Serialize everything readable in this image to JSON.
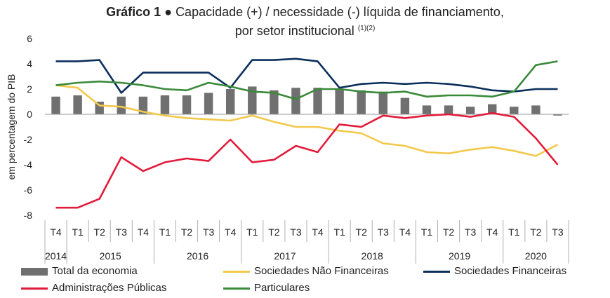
{
  "title": {
    "bold": "Gráfico 1 ●",
    "line1": "Capacidade (+) / necessidade (-) líquida de financiamento,",
    "line2": "por setor institucional",
    "notes": "(1)(2)"
  },
  "chart_data": {
    "type": "bar",
    "ylabel": "em percentagem do PIB",
    "ylim": [
      -8,
      6
    ],
    "yticks": [
      6,
      4,
      2,
      0,
      -2,
      -4,
      -6,
      -8
    ],
    "grid": false,
    "quarters": [
      "T4",
      "T1",
      "T2",
      "T3",
      "T4",
      "T1",
      "T2",
      "T3",
      "T4",
      "T1",
      "T2",
      "T3",
      "T4",
      "T1",
      "T2",
      "T3",
      "T4",
      "T1",
      "T2",
      "T3",
      "T4",
      "T1",
      "T2",
      "T3"
    ],
    "years": [
      {
        "label": "2014",
        "start": 0,
        "end": 0
      },
      {
        "label": "2015",
        "start": 1,
        "end": 4
      },
      {
        "label": "2016",
        "start": 5,
        "end": 8
      },
      {
        "label": "2017",
        "start": 9,
        "end": 12
      },
      {
        "label": "2018",
        "start": 13,
        "end": 16
      },
      {
        "label": "2019",
        "start": 17,
        "end": 20
      },
      {
        "label": "2020",
        "start": 21,
        "end": 23
      }
    ],
    "series": [
      {
        "name": "Total da economia",
        "kind": "bar",
        "color": "#707070",
        "values": [
          1.4,
          1.5,
          1.0,
          1.4,
          1.4,
          1.5,
          1.5,
          1.7,
          2.0,
          2.2,
          1.9,
          2.1,
          2.1,
          2.0,
          1.9,
          1.8,
          1.3,
          0.7,
          0.7,
          0.6,
          0.8,
          0.6,
          0.7,
          -0.1
        ]
      },
      {
        "name": "Sociedades Não Financeiras",
        "kind": "line",
        "color": "#f2c94c",
        "values": [
          2.3,
          2.1,
          0.7,
          0.6,
          0.2,
          -0.1,
          -0.3,
          -0.4,
          -0.5,
          -0.1,
          -0.6,
          -1.0,
          -1.0,
          -1.3,
          -1.5,
          -2.3,
          -2.5,
          -3.0,
          -3.1,
          -2.8,
          -2.6,
          -2.9,
          -3.3,
          -2.4
        ]
      },
      {
        "name": "Sociedades Financeiras",
        "kind": "line",
        "color": "#0b2f5b",
        "values": [
          4.2,
          4.2,
          4.3,
          1.7,
          3.3,
          3.3,
          3.3,
          3.3,
          2.1,
          4.3,
          4.3,
          4.4,
          4.2,
          2.1,
          2.4,
          2.5,
          2.4,
          2.5,
          2.4,
          2.2,
          1.9,
          1.8,
          2.0,
          2.0
        ]
      },
      {
        "name": "Administrações Públicas",
        "kind": "line",
        "color": "#e21b3b",
        "values": [
          -7.4,
          -7.4,
          -6.7,
          -3.4,
          -4.5,
          -3.8,
          -3.5,
          -3.7,
          -2.0,
          -3.8,
          -3.6,
          -2.5,
          -3.0,
          -0.8,
          -1.0,
          -0.1,
          -0.3,
          -0.1,
          0.0,
          -0.2,
          0.1,
          -0.2,
          -1.9,
          -4.0
        ]
      },
      {
        "name": "Particulares",
        "kind": "line",
        "color": "#3a8a3a",
        "values": [
          2.3,
          2.5,
          2.6,
          2.5,
          2.3,
          2.0,
          1.9,
          2.5,
          2.2,
          1.8,
          1.7,
          1.2,
          2.0,
          2.0,
          1.8,
          1.7,
          1.8,
          1.4,
          1.5,
          1.5,
          1.4,
          1.8,
          3.9,
          4.2
        ]
      }
    ]
  }
}
